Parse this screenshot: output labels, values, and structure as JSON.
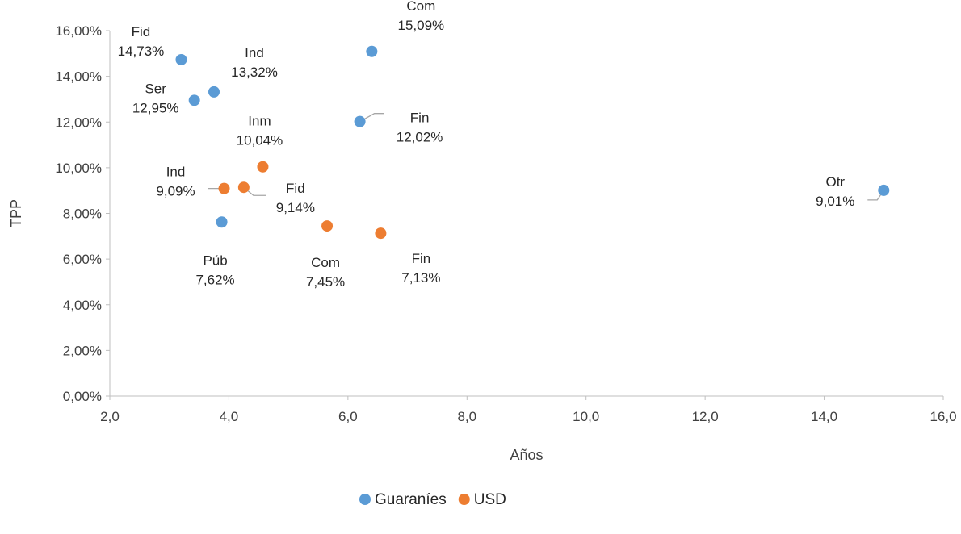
{
  "chart_data": {
    "type": "scatter",
    "xlabel": "Años",
    "ylabel": "TPP",
    "xlim": [
      2.0,
      16.0
    ],
    "ylim": [
      0,
      16
    ],
    "x_ticks": [
      "2,0",
      "4,0",
      "6,0",
      "8,0",
      "10,0",
      "12,0",
      "14,0",
      "16,0"
    ],
    "y_ticks": [
      "0,00%",
      "2,00%",
      "4,00%",
      "6,00%",
      "8,00%",
      "10,00%",
      "12,00%",
      "14,00%",
      "16,00%"
    ],
    "grid": false,
    "legend_position": "bottom",
    "series": [
      {
        "name": "Guaraníes",
        "color": "#5B9BD5",
        "points": [
          {
            "x": 3.2,
            "y": 14.73,
            "cat": "Fid",
            "label": "14,73%"
          },
          {
            "x": 3.75,
            "y": 13.32,
            "cat": "Ind",
            "label": "13,32%"
          },
          {
            "x": 3.42,
            "y": 12.95,
            "cat": "Ser",
            "label": "12,95%"
          },
          {
            "x": 6.4,
            "y": 15.09,
            "cat": "Com",
            "label": "15,09%"
          },
          {
            "x": 6.2,
            "y": 12.02,
            "cat": "Fin",
            "label": "12,02%"
          },
          {
            "x": 3.88,
            "y": 7.62,
            "cat": "Púb",
            "label": "7,62%"
          },
          {
            "x": 15.0,
            "y": 9.01,
            "cat": "Otr",
            "label": "9,01%"
          }
        ]
      },
      {
        "name": "USD",
        "color": "#ED7D31",
        "points": [
          {
            "x": 4.57,
            "y": 10.04,
            "cat": "Inm",
            "label": "10,04%"
          },
          {
            "x": 3.92,
            "y": 9.09,
            "cat": "Ind",
            "label": "9,09%"
          },
          {
            "x": 4.25,
            "y": 9.14,
            "cat": "Fid",
            "label": "9,14%"
          },
          {
            "x": 5.65,
            "y": 7.45,
            "cat": "Com",
            "label": "7,45%"
          },
          {
            "x": 6.55,
            "y": 7.13,
            "cat": "Fin",
            "label": "7,13%"
          }
        ]
      }
    ]
  }
}
